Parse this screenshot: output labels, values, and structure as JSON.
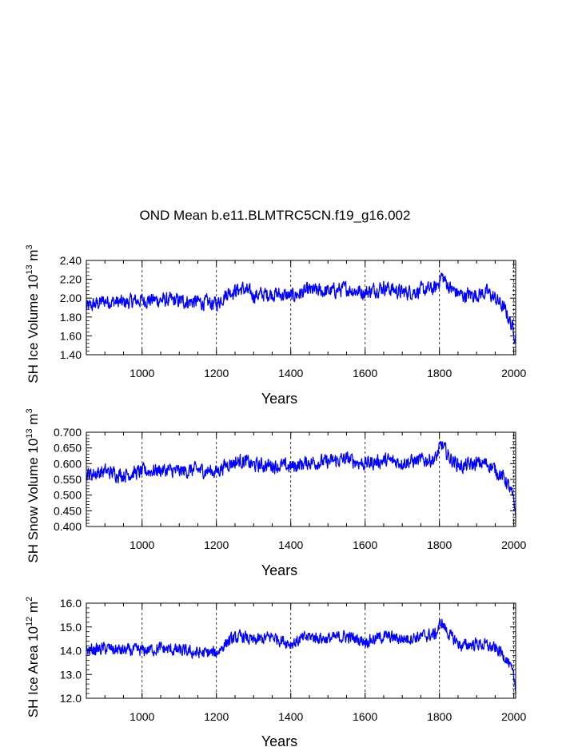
{
  "title": "OND Mean b.e11.BLMTRC5CN.f19_g16.002",
  "chart_data": [
    {
      "type": "line",
      "title": "OND Mean b.e11.BLMTRC5CN.f19_g16.002",
      "ylabel": {
        "prefix": "SH Ice Volume 10",
        "exp": "13",
        "unit": "m",
        "unit_exp": "3"
      },
      "xlabel": "Years",
      "xlim": [
        850,
        2005
      ],
      "ylim": [
        1.4,
        2.4
      ],
      "xticks": [
        1000,
        1200,
        1400,
        1600,
        1800,
        2000
      ],
      "xtick_labels": [
        "1000",
        "1200",
        "1400",
        "1600",
        "1800",
        "2000"
      ],
      "yticks": [
        1.4,
        1.6,
        1.8,
        2.0,
        2.2,
        2.4
      ],
      "ytick_labels": [
        "1.40",
        "1.60",
        "1.80",
        "2.00",
        "2.20",
        "2.40"
      ],
      "series_color": "#0000ff",
      "series": [
        {
          "name": "SH Ice Volume",
          "x": [
            850,
            900,
            950,
            1000,
            1050,
            1100,
            1150,
            1200,
            1230,
            1270,
            1300,
            1350,
            1400,
            1450,
            1500,
            1550,
            1600,
            1650,
            1700,
            1750,
            1790,
            1805,
            1830,
            1860,
            1900,
            1930,
            1960,
            1980,
            1995,
            2005
          ],
          "y": [
            1.9,
            1.97,
            1.95,
            1.98,
            1.98,
            1.97,
            1.96,
            1.94,
            2.06,
            2.1,
            2.03,
            2.05,
            2.02,
            2.08,
            2.07,
            2.1,
            2.06,
            2.12,
            2.06,
            2.08,
            2.1,
            2.24,
            2.1,
            2.03,
            2.04,
            2.06,
            1.96,
            1.85,
            1.7,
            1.6
          ],
          "noise": 0.12
        }
      ]
    },
    {
      "type": "line",
      "ylabel": {
        "prefix": "SH Snow Volume 10",
        "exp": "13",
        "unit": "m",
        "unit_exp": "3"
      },
      "xlabel": "Years",
      "xlim": [
        850,
        2005
      ],
      "ylim": [
        0.4,
        0.7
      ],
      "xticks": [
        1000,
        1200,
        1400,
        1600,
        1800,
        2000
      ],
      "xtick_labels": [
        "1000",
        "1200",
        "1400",
        "1600",
        "1800",
        "2000"
      ],
      "yticks": [
        0.4,
        0.45,
        0.5,
        0.55,
        0.6,
        0.65,
        0.7
      ],
      "ytick_labels": [
        "0.400",
        "0.450",
        "0.500",
        "0.550",
        "0.600",
        "0.650",
        "0.700"
      ],
      "series_color": "#0000ff",
      "series": [
        {
          "name": "SH Snow Volume",
          "x": [
            850,
            900,
            950,
            1000,
            1050,
            1100,
            1150,
            1200,
            1230,
            1270,
            1300,
            1350,
            1400,
            1450,
            1500,
            1550,
            1600,
            1650,
            1700,
            1750,
            1790,
            1805,
            1830,
            1860,
            1900,
            1930,
            1960,
            1980,
            1995,
            2005
          ],
          "y": [
            0.565,
            0.575,
            0.565,
            0.575,
            0.58,
            0.575,
            0.58,
            0.575,
            0.6,
            0.61,
            0.595,
            0.595,
            0.59,
            0.605,
            0.605,
            0.615,
            0.6,
            0.61,
            0.605,
            0.61,
            0.615,
            0.66,
            0.615,
            0.59,
            0.6,
            0.6,
            0.57,
            0.545,
            0.5,
            0.45
          ],
          "noise": 0.035
        }
      ]
    },
    {
      "type": "line",
      "ylabel": {
        "prefix": "SH Ice Area 10",
        "exp": "12",
        "unit": "m",
        "unit_exp": "2"
      },
      "xlabel": "Years",
      "xlim": [
        850,
        2005
      ],
      "ylim": [
        12.0,
        16.0
      ],
      "xticks": [
        1000,
        1200,
        1400,
        1600,
        1800,
        2000
      ],
      "xtick_labels": [
        "1000",
        "1200",
        "1400",
        "1600",
        "1800",
        "2000"
      ],
      "yticks": [
        12.0,
        13.0,
        14.0,
        15.0,
        16.0
      ],
      "ytick_labels": [
        "12.0",
        "13.0",
        "14.0",
        "15.0",
        "16.0"
      ],
      "series_color": "#0000ff",
      "series": [
        {
          "name": "SH Ice Area",
          "x": [
            850,
            900,
            950,
            1000,
            1050,
            1100,
            1150,
            1200,
            1230,
            1270,
            1300,
            1350,
            1400,
            1450,
            1500,
            1550,
            1600,
            1650,
            1700,
            1750,
            1790,
            1805,
            1830,
            1860,
            1900,
            1930,
            1960,
            1980,
            1995,
            2005
          ],
          "y": [
            14.0,
            14.1,
            14.0,
            14.0,
            14.1,
            14.0,
            13.9,
            13.9,
            14.4,
            14.6,
            14.4,
            14.6,
            14.3,
            14.6,
            14.5,
            14.6,
            14.4,
            14.6,
            14.5,
            14.6,
            14.7,
            15.2,
            14.6,
            14.2,
            14.3,
            14.2,
            14.0,
            13.7,
            13.1,
            12.5
          ],
          "noise": 0.4
        }
      ]
    }
  ]
}
